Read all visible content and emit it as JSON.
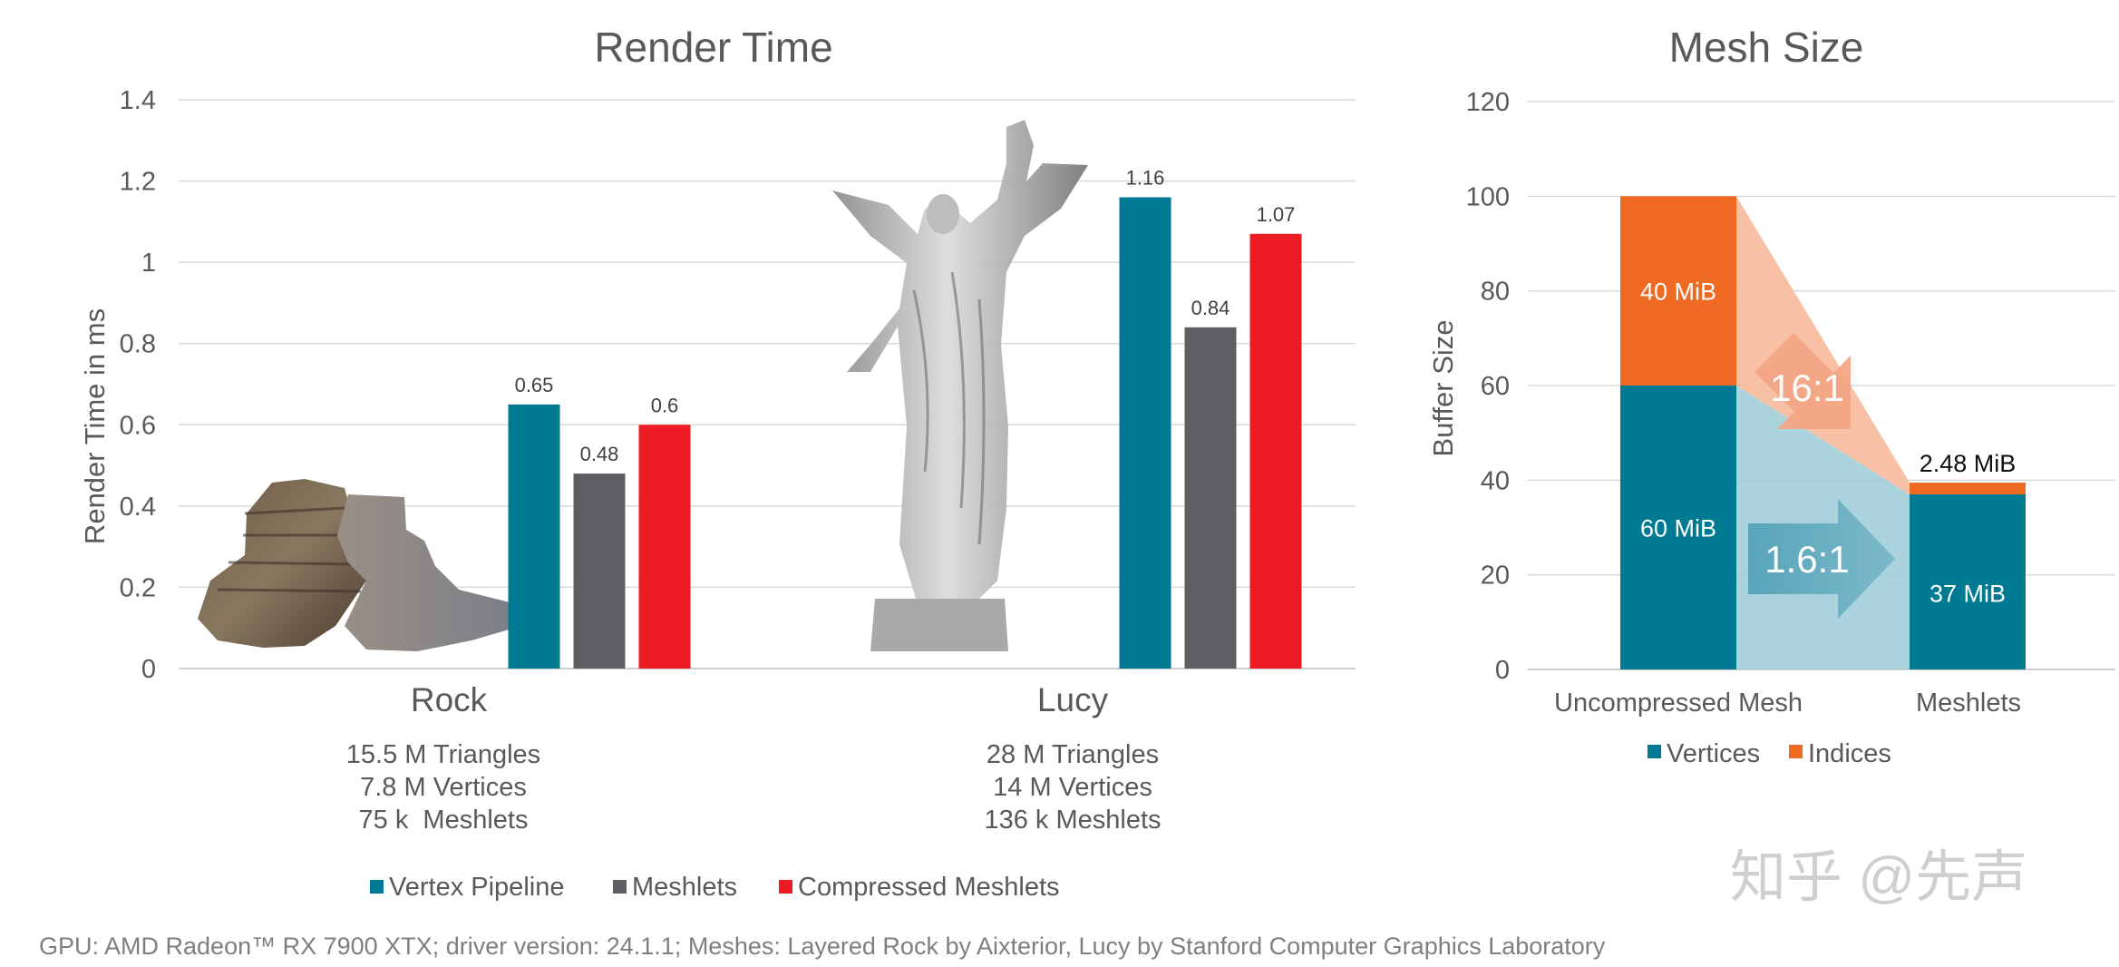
{
  "chart_data": [
    {
      "type": "bar",
      "title": "Render Time",
      "xlabel": "",
      "ylabel": "Render Time in ms",
      "ylim": [
        0,
        1.4
      ],
      "yticks": [
        "0",
        "0.2",
        "0.4",
        "0.6",
        "0.8",
        "1",
        "1.2",
        "1.4"
      ],
      "grid": true,
      "legend_position": "bottom",
      "categories": [
        "Rock",
        "Lucy"
      ],
      "category_details": [
        [
          "15.5 M Triangles",
          "7.8 M Vertices",
          "75 k  Meshlets"
        ],
        [
          "28 M Triangles",
          "14 M Vertices",
          "136 k Meshlets"
        ]
      ],
      "series": [
        {
          "name": "Vertex Pipeline",
          "values": [
            0.65,
            1.16
          ],
          "labels": [
            "0.65",
            "1.16"
          ],
          "color": "#007A93"
        },
        {
          "name": "Meshlets",
          "values": [
            0.48,
            0.84
          ],
          "labels": [
            "0.48",
            "0.84"
          ],
          "color": "#5E5F63"
        },
        {
          "name": "Compressed Meshlets",
          "values": [
            0.6,
            1.07
          ],
          "labels": [
            "0.6",
            "1.07"
          ],
          "color": "#ED1C24"
        }
      ]
    },
    {
      "type": "bar",
      "stacked": true,
      "title": "Mesh Size",
      "xlabel": "",
      "ylabel": "Buffer Size",
      "ylim": [
        0,
        120
      ],
      "yticks": [
        "0",
        "20",
        "40",
        "60",
        "80",
        "100",
        "120"
      ],
      "grid": true,
      "legend_position": "bottom",
      "categories": [
        "Uncompressed Mesh",
        "Meshlets"
      ],
      "series": [
        {
          "name": "Vertices",
          "values": [
            60,
            37
          ],
          "labels": [
            "60 MiB",
            "37 MiB"
          ],
          "color": "#007A93"
        },
        {
          "name": "Indices",
          "values": [
            40,
            2.48
          ],
          "labels": [
            "40 MiB",
            "2.48 MiB"
          ],
          "color": "#EE6A22"
        }
      ],
      "annotations": [
        {
          "text": "16:1",
          "refers_to": "Indices"
        },
        {
          "text": "1.6:1",
          "refers_to": "Vertices"
        }
      ]
    }
  ],
  "footnote": "GPU: AMD Radeon™ RX 7900 XTX; driver version: 24.1.1; Meshes: Layered Rock by Aixterior, Lucy by Stanford Computer Graphics Laboratory",
  "watermark": "知乎 @先声"
}
